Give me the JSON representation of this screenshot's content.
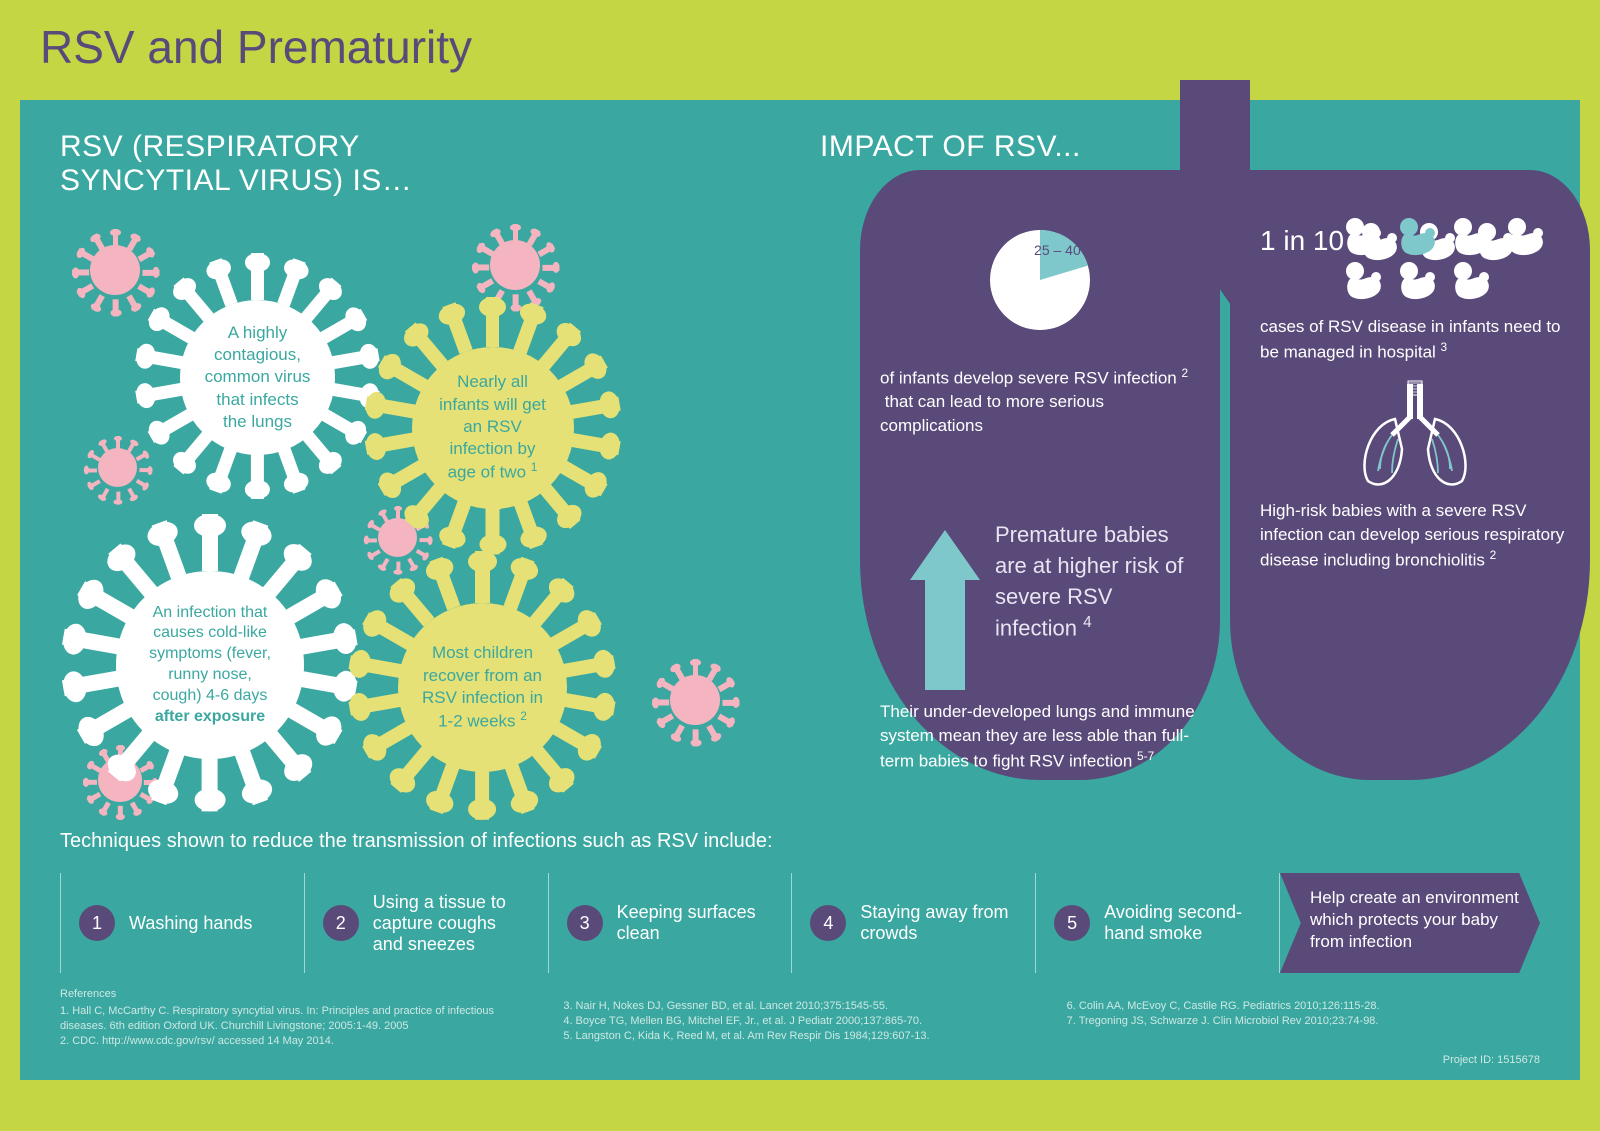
{
  "title": "RSV and Prematurity",
  "colors": {
    "header_bg": "#c5d644",
    "main_bg": "#3aa8a0",
    "purple": "#5a4a7a",
    "light_blue": "#7ec8cc",
    "pink": "#f5b5c0",
    "yellow": "#e5e176",
    "white": "#ffffff"
  },
  "left": {
    "heading_line1": "RSV (RESPIRATORY",
    "heading_line2": "SYNCYTIAL VIRUS) IS…",
    "bubbles": [
      {
        "text": "A highly contagious, common virus that infects the lungs",
        "color": "#ffffff",
        "text_color": "#3aa8a0"
      },
      {
        "text_html": "Nearly all infants will get an RSV infection by age of two <sup>1</sup>",
        "color": "#e5e176",
        "text_color": "#3aa8a0"
      },
      {
        "text_html": "An infection that causes cold-like symptoms (fever, runny nose, cough) 4-6 days <b>after exposure</b>",
        "color": "#ffffff",
        "text_color": "#3aa8a0"
      },
      {
        "text_html": "Most children recover from an RSV infection in 1-2 weeks <sup>2</sup>",
        "color": "#e5e176",
        "text_color": "#3aa8a0"
      }
    ]
  },
  "right": {
    "heading": "IMPACT OF RSV...",
    "pie_label": "25 – 40%",
    "left_lung": {
      "fact1_html": "of infants develop severe RSV infection <sup>2</sup> &nbsp;that can lead to more serious complications",
      "premature_heading_html": "Premature babies are at higher risk of severe RSV infection <sup>4</sup>",
      "fact2_html": "Their under-developed lungs and immune system mean they are less able than full-term babies to fight RSV infection <sup>5-7</sup>"
    },
    "right_lung": {
      "stat_label": "1 in 10",
      "baby_highlight_index": 4,
      "baby_total": 10,
      "fact1_html": "cases of RSV disease in infants need to be managed in hospital <sup>3</sup>",
      "fact2_html": "High-risk babies with a severe RSV infection can develop serious respiratory disease including bronchiolitis <sup>2</sup>"
    }
  },
  "techniques": {
    "heading": "Techniques shown to reduce the transmission of infections such as RSV include:",
    "items": [
      "Washing hands",
      "Using a tissue to capture coughs and sneezes",
      "Keeping surfaces clean",
      "Staying away from crowds",
      "Avoiding second-hand smoke"
    ],
    "callout": "Help create an environment which protects your baby from infection"
  },
  "references": {
    "heading": "References",
    "col1": [
      "1. Hall C, McCarthy C. Respiratory syncytial virus. In: Principles and practice of infectious diseases. 6th edition Oxford UK. Churchill Livingstone; 2005:1-49. 2005",
      "2. CDC. http://www.cdc.gov/rsv/ accessed 14 May 2014."
    ],
    "col2": [
      "3. Nair H, Nokes DJ, Gessner BD, et al.    Lancet  2010;375:1545-55.",
      "4. Boyce TG, Mellen BG, Mitchel EF, Jr., et al.    J Pediatr  2000;137:865-70.",
      "5. Langston C, Kida K, Reed M, et al.    Am Rev Respir Dis    1984;129:607-13."
    ],
    "col3": [
      "6. Colin AA, McEvoy C, Castile RG.    Pediatrics  2010;126:115-28.",
      "7. Tregoning JS, Schwarze J.  Clin Microbiol Rev    2010;23:74-98."
    ],
    "project_id": "Project ID: 1515678"
  }
}
